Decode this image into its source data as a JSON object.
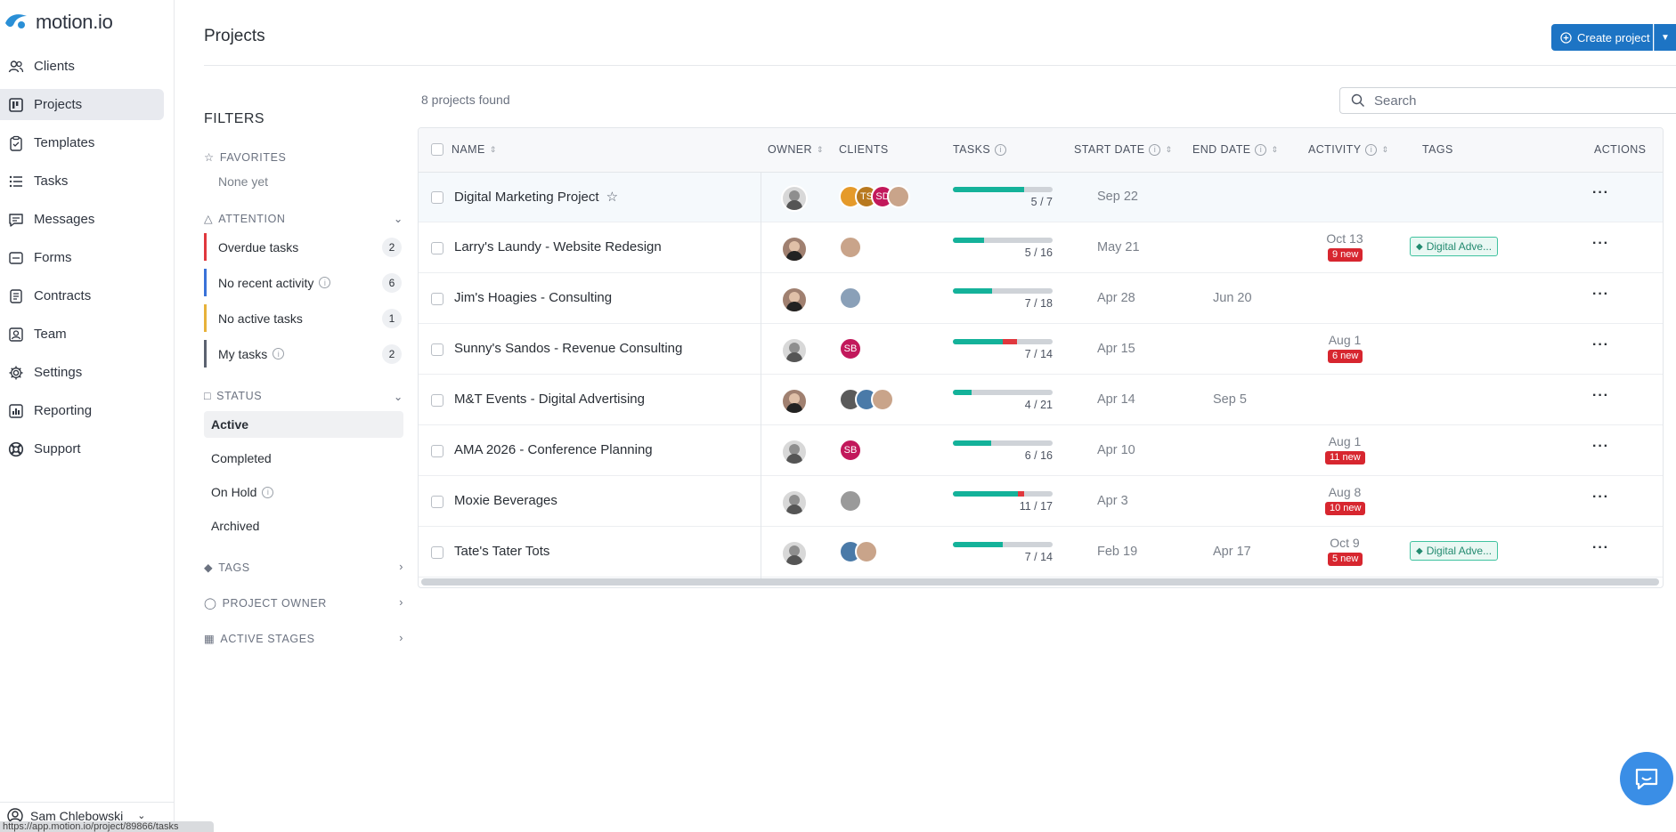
{
  "app": {
    "logo": "motion.io"
  },
  "sidebar": {
    "items": [
      {
        "label": "Clients",
        "icon": "users-icon"
      },
      {
        "label": "Projects",
        "icon": "board-icon"
      },
      {
        "label": "Templates",
        "icon": "clipboard-icon"
      },
      {
        "label": "Tasks",
        "icon": "list-icon"
      },
      {
        "label": "Messages",
        "icon": "message-icon"
      },
      {
        "label": "Forms",
        "icon": "form-icon"
      },
      {
        "label": "Contracts",
        "icon": "document-icon"
      },
      {
        "label": "Team",
        "icon": "id-card-icon"
      },
      {
        "label": "Settings",
        "icon": "gear-icon"
      },
      {
        "label": "Reporting",
        "icon": "chart-icon"
      },
      {
        "label": "Support",
        "icon": "lifebuoy-icon"
      }
    ],
    "active_index": 1,
    "user_name": "Sam Chlebowski"
  },
  "status_url": "https://app.motion.io/project/89866/tasks",
  "header": {
    "title": "Projects",
    "create_label": "Create project"
  },
  "filters": {
    "title": "FILTERS",
    "favorites": {
      "label": "FAVORITES",
      "empty": "None yet"
    },
    "attention": {
      "label": "ATTENTION",
      "items": [
        {
          "label": "Overdue tasks",
          "count": "2",
          "color": "#e0383e"
        },
        {
          "label": "No recent activity",
          "count": "6",
          "color": "#3a72d8"
        },
        {
          "label": "No active tasks",
          "count": "1",
          "color": "#e7b23a"
        },
        {
          "label": "My tasks",
          "count": "2",
          "color": "#5b6270"
        }
      ]
    },
    "status": {
      "label": "STATUS",
      "items": [
        "Active",
        "Completed",
        "On Hold",
        "Archived"
      ],
      "active_index": 0
    },
    "tags_label": "TAGS",
    "owner_label": "PROJECT OWNER",
    "stages_label": "ACTIVE STAGES"
  },
  "table": {
    "found_text": "8 projects found",
    "search_placeholder": "Search",
    "columns": {
      "name": "NAME",
      "owner": "OWNER",
      "clients": "CLIENTS",
      "tasks": "TASKS",
      "start": "START DATE",
      "end": "END DATE",
      "activity": "ACTIVITY",
      "tags": "TAGS",
      "actions": "ACTIONS"
    },
    "rows": [
      {
        "name": "Digital Marketing Project",
        "owner": "light",
        "clients": [
          {
            "t": "",
            "c": "#e59a2a"
          },
          {
            "t": "TS",
            "c": "#b8791f"
          },
          {
            "t": "SD",
            "c": "#c2185b"
          },
          {
            "t": "",
            "c": "#c9a48a"
          }
        ],
        "done": 5,
        "total": 7,
        "tasks_text": "5 / 7",
        "progress": 0.71,
        "red": 0,
        "start": "Sep 22",
        "end": "",
        "activity": "",
        "new": "",
        "tag": ""
      },
      {
        "name": "Larry's Laundy - Website Redesign",
        "owner": "dark",
        "clients": [
          {
            "t": "",
            "c": "#c9a48a"
          }
        ],
        "done": 5,
        "total": 16,
        "tasks_text": "5 / 16",
        "progress": 0.31,
        "red": 0,
        "start": "May 21",
        "end": "",
        "activity": "Oct 13",
        "new": "9 new",
        "tag": "Digital Adve..."
      },
      {
        "name": "Jim's Hoagies - Consulting",
        "owner": "dark",
        "clients": [
          {
            "t": "",
            "c": "#8aa0b8"
          }
        ],
        "done": 7,
        "total": 18,
        "tasks_text": "7 / 18",
        "progress": 0.39,
        "red": 0,
        "start": "Apr 28",
        "end": "Jun 20",
        "activity": "",
        "new": "",
        "tag": ""
      },
      {
        "name": "Sunny's Sandos - Revenue Consulting",
        "owner": "light",
        "clients": [
          {
            "t": "SB",
            "c": "#c2185b"
          }
        ],
        "done": 7,
        "total": 14,
        "tasks_text": "7 / 14",
        "progress": 0.5,
        "red": 0.14,
        "start": "Apr 15",
        "end": "",
        "activity": "Aug 1",
        "new": "6 new",
        "tag": ""
      },
      {
        "name": "M&T Events - Digital Advertising",
        "owner": "dark",
        "clients": [
          {
            "t": "",
            "c": "#5a5a5a"
          },
          {
            "t": "",
            "c": "#4a7aa8"
          },
          {
            "t": "",
            "c": "#c9a48a"
          }
        ],
        "done": 4,
        "total": 21,
        "tasks_text": "4 / 21",
        "progress": 0.19,
        "red": 0,
        "start": "Apr 14",
        "end": "Sep 5",
        "activity": "",
        "new": "",
        "tag": ""
      },
      {
        "name": "AMA 2026 - Conference Planning",
        "owner": "light",
        "clients": [
          {
            "t": "SB",
            "c": "#c2185b"
          }
        ],
        "done": 6,
        "total": 16,
        "tasks_text": "6 / 16",
        "progress": 0.38,
        "red": 0,
        "start": "Apr 10",
        "end": "",
        "activity": "Aug 1",
        "new": "11 new",
        "tag": ""
      },
      {
        "name": "Moxie Beverages",
        "owner": "light",
        "clients": [
          {
            "t": "",
            "c": "#9a9a9a"
          }
        ],
        "done": 11,
        "total": 17,
        "tasks_text": "11 / 17",
        "progress": 0.65,
        "red": 0.06,
        "start": "Apr 3",
        "end": "",
        "activity": "Aug 8",
        "new": "10 new",
        "tag": ""
      },
      {
        "name": "Tate's Tater Tots",
        "owner": "light",
        "clients": [
          {
            "t": "",
            "c": "#4a7aa8"
          },
          {
            "t": "",
            "c": "#c9a48a"
          }
        ],
        "done": 7,
        "total": 14,
        "tasks_text": "7 / 14",
        "progress": 0.5,
        "red": 0,
        "start": "Feb 19",
        "end": "Apr 17",
        "activity": "Oct 9",
        "new": "5 new",
        "tag": "Digital Adve..."
      }
    ]
  },
  "colors": {
    "accent": "#1d74c4",
    "progress": "#14b29a",
    "danger": "#d7262f"
  }
}
